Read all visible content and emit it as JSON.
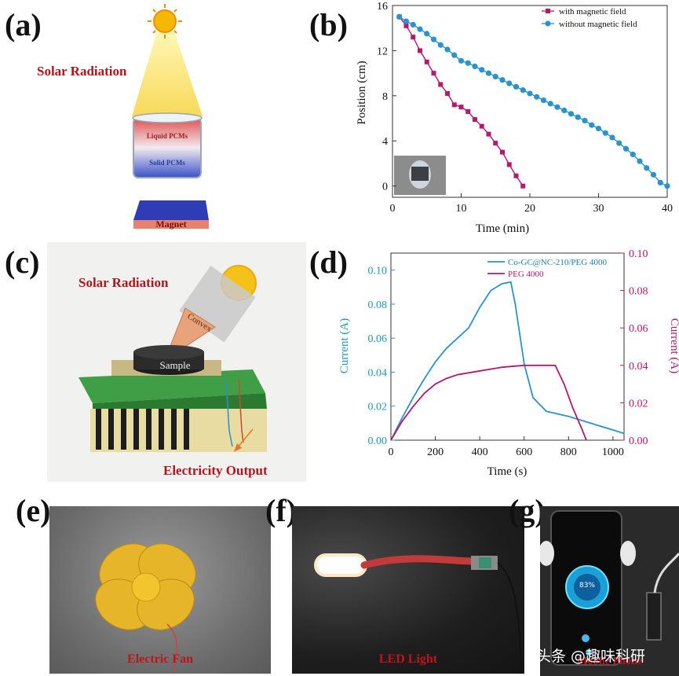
{
  "panels": {
    "a": {
      "letter": "(a)",
      "solar_label": "Solar Radiation",
      "liquid_label": "Liquid PCMs",
      "solid_label": "Solid PCMs",
      "magnet_label": "Magnet"
    },
    "b": {
      "letter": "(b)"
    },
    "c": {
      "letter": "(c)",
      "solar_label": "Solar Radiation",
      "convex_label": "Convex",
      "sample_label": "Sample",
      "output_label": "Electricity Output"
    },
    "d": {
      "letter": "(d)"
    },
    "e": {
      "letter": "(e)",
      "caption": "Electric Fan"
    },
    "f": {
      "letter": "(f)",
      "caption": "LED Light"
    },
    "g": {
      "letter": "(g)",
      "caption": "Mobile Phone",
      "battery_text": "83%"
    }
  },
  "watermark": "头条 @趣味科研",
  "colors": {
    "magenta": "#b5186e",
    "blue": "#2a93cf",
    "teal_axis": "#1b9bbf",
    "caption_red": "#c0141c"
  },
  "chart_data": [
    {
      "panel": "b",
      "type": "line",
      "xlabel": "Time (min)",
      "ylabel": "Position (cm)",
      "xlim": [
        0,
        40
      ],
      "ylim": [
        -1,
        16
      ],
      "xticks": [
        0,
        10,
        20,
        30,
        40
      ],
      "yticks": [
        0,
        4,
        8,
        12,
        16
      ],
      "legend_position": "top-right",
      "series": [
        {
          "name": "with magnetic field",
          "color": "#b5186e",
          "marker": "square",
          "x": [
            1,
            2,
            3,
            4,
            5,
            6,
            7,
            8,
            9,
            10,
            11,
            12,
            13,
            14,
            15,
            16,
            17,
            18,
            19
          ],
          "y": [
            15.0,
            14.2,
            13.2,
            12.0,
            11.0,
            10.0,
            9.0,
            8.2,
            7.2,
            7.0,
            6.6,
            5.9,
            5.3,
            4.6,
            3.8,
            3.0,
            1.9,
            0.9,
            0.0
          ]
        },
        {
          "name": "without magnetic field",
          "color": "#2a93cf",
          "marker": "circle",
          "x": [
            1,
            2,
            3,
            4,
            5,
            6,
            7,
            8,
            9,
            10,
            11,
            12,
            13,
            14,
            15,
            16,
            17,
            18,
            19,
            20,
            21,
            22,
            23,
            24,
            25,
            26,
            27,
            28,
            29,
            30,
            31,
            32,
            33,
            34,
            35,
            36,
            37,
            38,
            39,
            40
          ],
          "y": [
            15.0,
            14.6,
            14.3,
            13.9,
            13.5,
            13.0,
            12.5,
            12.1,
            11.6,
            11.1,
            10.9,
            10.6,
            10.3,
            10.0,
            9.7,
            9.4,
            9.1,
            8.8,
            8.5,
            8.2,
            7.9,
            7.6,
            7.3,
            7.0,
            6.7,
            6.4,
            6.1,
            5.8,
            5.4,
            5.1,
            4.7,
            4.3,
            3.8,
            3.3,
            2.8,
            2.2,
            1.6,
            1.0,
            0.3,
            0.0
          ]
        }
      ]
    },
    {
      "panel": "d",
      "type": "line",
      "xlabel": "Time (s)",
      "ylabel_left": "Current (A)",
      "ylabel_right": "Current (A)",
      "xlim": [
        0,
        1050
      ],
      "ylim": [
        0,
        0.11
      ],
      "ylim_right": [
        0,
        0.1
      ],
      "xticks": [
        0,
        200,
        400,
        600,
        800,
        1000
      ],
      "yticks_left": [
        0.0,
        0.02,
        0.04,
        0.06,
        0.08,
        0.1
      ],
      "yticks_right": [
        0.0,
        0.02,
        0.04,
        0.06,
        0.08,
        0.1
      ],
      "legend_position": "top-right",
      "series": [
        {
          "name": "Co-GC@NC-210/PEG 4000",
          "color": "#2a93cf",
          "axis": "left",
          "x": [
            0,
            50,
            100,
            150,
            200,
            250,
            300,
            350,
            400,
            450,
            500,
            540,
            560,
            600,
            640,
            700,
            800,
            900,
            1000,
            1050
          ],
          "y": [
            0.0,
            0.013,
            0.025,
            0.036,
            0.046,
            0.054,
            0.06,
            0.066,
            0.078,
            0.088,
            0.092,
            0.093,
            0.08,
            0.045,
            0.025,
            0.017,
            0.014,
            0.01,
            0.006,
            0.004
          ]
        },
        {
          "name": "PEG 4000",
          "color": "#b5186e",
          "axis": "right",
          "x": [
            0,
            50,
            100,
            150,
            200,
            250,
            300,
            400,
            500,
            600,
            700,
            740,
            780,
            820,
            860,
            880
          ],
          "y": [
            0.0,
            0.01,
            0.018,
            0.025,
            0.03,
            0.033,
            0.035,
            0.037,
            0.039,
            0.04,
            0.04,
            0.04,
            0.03,
            0.017,
            0.006,
            0.0
          ]
        }
      ]
    }
  ]
}
